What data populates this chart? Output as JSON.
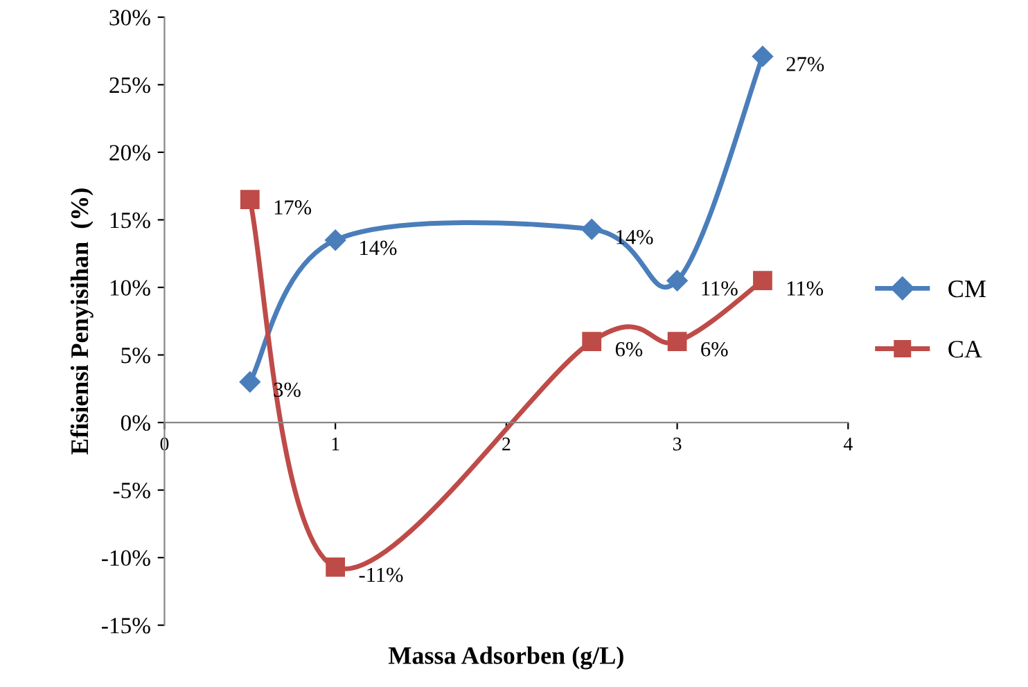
{
  "chart_data": {
    "type": "line",
    "xlabel": "Massa Adsorben (g/L)",
    "ylabel": "Efisiensi Penyisihan  (%)",
    "xlim": [
      0,
      4
    ],
    "xticks": [
      0,
      1,
      2,
      3,
      4
    ],
    "ylim": [
      -15,
      30
    ],
    "yticks": [
      {
        "value": -15,
        "label": "-15%"
      },
      {
        "value": -10,
        "label": "-10%"
      },
      {
        "value": -5,
        "label": "-5%"
      },
      {
        "value": 0,
        "label": "0%"
      },
      {
        "value": 5,
        "label": "5%"
      },
      {
        "value": 10,
        "label": "10%"
      },
      {
        "value": 15,
        "label": "15%"
      },
      {
        "value": 20,
        "label": "20%"
      },
      {
        "value": 25,
        "label": "25%"
      },
      {
        "value": 30,
        "label": "30%"
      }
    ],
    "grid": false,
    "legend": "right",
    "line_style": "solid",
    "series": [
      {
        "name": "CM",
        "color": "#4a7ebb",
        "marker": "diamond",
        "x": [
          0.5,
          1,
          2.5,
          3,
          3.5
        ],
        "values": [
          3,
          13.5,
          14.3,
          10.5,
          27.1
        ],
        "value_labels": [
          "3%",
          "14%",
          "14%",
          "11%",
          "27%"
        ]
      },
      {
        "name": "CA",
        "color": "#be4b48",
        "marker": "square",
        "x": [
          0.5,
          1,
          2.5,
          3,
          3.5
        ],
        "values": [
          16.5,
          -10.7,
          6,
          6,
          10.5
        ],
        "value_labels": [
          "17%",
          "-11%",
          "6%",
          "6%",
          "11%"
        ]
      }
    ]
  }
}
